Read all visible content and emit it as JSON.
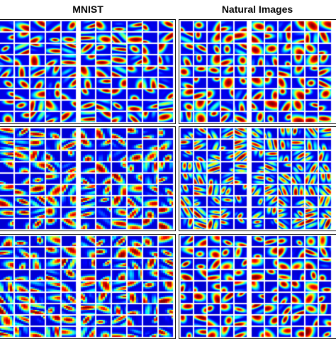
{
  "figure": {
    "columns": [
      {
        "header": "MNIST"
      },
      {
        "header": "Natural Images"
      }
    ],
    "rows": 3,
    "tiles_per_row": 11,
    "tiles_per_col": 9,
    "colormap": "jet",
    "colormap_stops": [
      "#00008f",
      "#0000ff",
      "#00ffff",
      "#ffff00",
      "#ff0000",
      "#800000"
    ],
    "background": "#ffffff",
    "border_color": "#111111"
  }
}
